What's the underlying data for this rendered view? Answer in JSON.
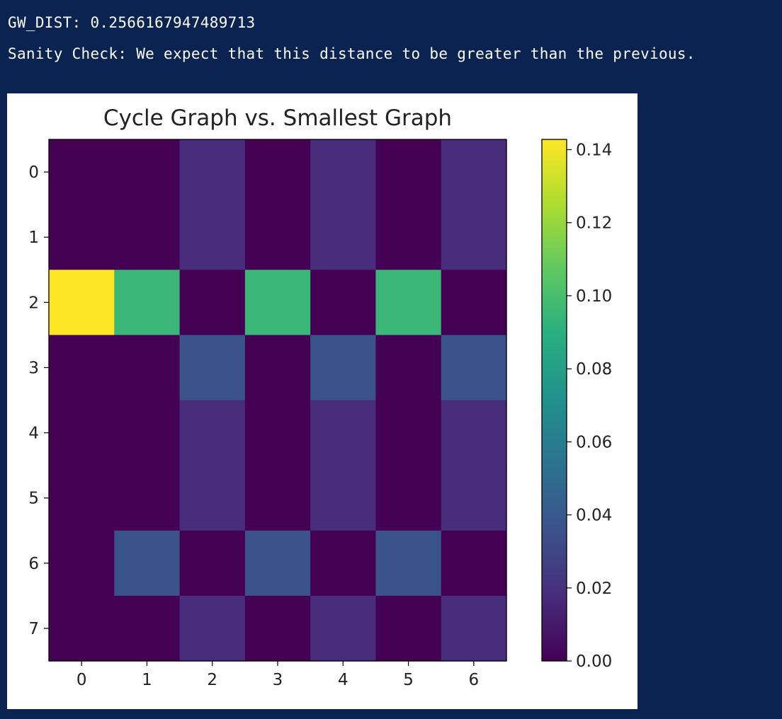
{
  "output": {
    "line1": "GW_DIST: 0.2566167947489713",
    "line2": "Sanity Check: We expect that this distance to be greater than the previous."
  },
  "chart_data": {
    "type": "heatmap",
    "title": "Cycle Graph vs. Smallest Graph",
    "xlabel": "",
    "ylabel": "",
    "x_ticks": [
      "0",
      "1",
      "2",
      "3",
      "4",
      "5",
      "6"
    ],
    "y_ticks": [
      "0",
      "1",
      "2",
      "3",
      "4",
      "5",
      "6",
      "7"
    ],
    "colormap": "viridis",
    "vmin": 0.0,
    "vmax": 0.1428,
    "colorbar_ticks": [
      "0.00",
      "0.02",
      "0.04",
      "0.06",
      "0.08",
      "0.10",
      "0.12",
      "0.14"
    ],
    "values": [
      [
        0.0,
        0.0,
        0.018,
        0.0,
        0.018,
        0.0,
        0.018
      ],
      [
        0.0,
        0.0,
        0.018,
        0.0,
        0.018,
        0.0,
        0.018
      ],
      [
        0.1428,
        0.0952,
        0.0,
        0.0952,
        0.0,
        0.0952,
        0.0
      ],
      [
        0.0,
        0.0,
        0.036,
        0.0,
        0.036,
        0.0,
        0.036
      ],
      [
        0.0,
        0.0,
        0.018,
        0.0,
        0.018,
        0.0,
        0.018
      ],
      [
        0.0,
        0.0,
        0.018,
        0.0,
        0.018,
        0.0,
        0.018
      ],
      [
        0.0,
        0.036,
        0.0,
        0.036,
        0.0,
        0.036,
        0.0
      ],
      [
        0.0,
        0.0,
        0.018,
        0.0,
        0.018,
        0.0,
        0.018
      ]
    ]
  }
}
